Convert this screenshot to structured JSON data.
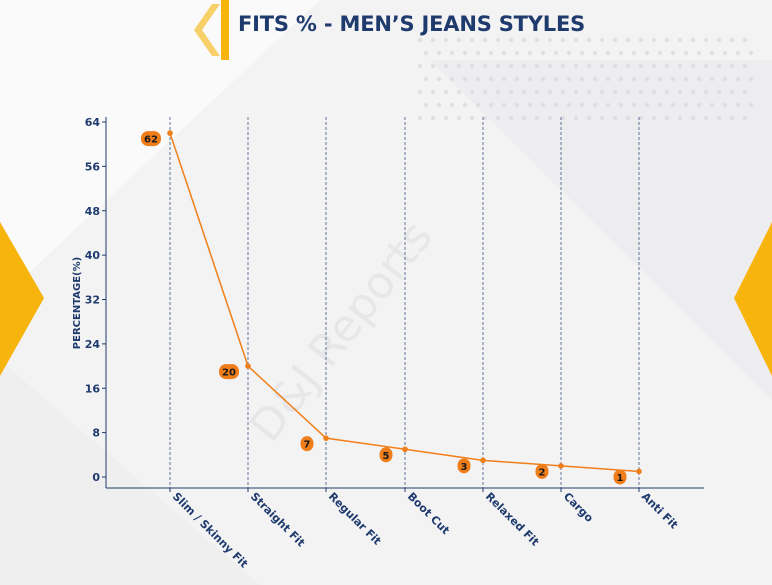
{
  "title": "FITS % - MEN’S JEANS STYLES",
  "watermark": "D&J Reports",
  "colors": {
    "accent": "#f6b40c",
    "line": "#f07f1a",
    "label_bg": "#ef7d1a",
    "axis_text": "#1f3b6e",
    "grid": "#1f3b6e"
  },
  "chart_data": {
    "type": "line",
    "title": "FITS % - MEN’S JEANS STYLES",
    "xlabel": "",
    "ylabel": "PERCENTAGE(%)",
    "categories": [
      "Slim / Skinny Fit",
      "Straight Fit",
      "Regular Fit",
      "Boot Cut",
      "Relaxed Fit",
      "Cargo",
      "Anti Fit"
    ],
    "values": [
      62,
      20,
      7,
      5,
      3,
      2,
      1
    ],
    "ylim": [
      0,
      64
    ],
    "yticks": [
      0,
      8,
      16,
      24,
      32,
      40,
      48,
      56,
      64
    ],
    "grid": "vertical dashed at categories",
    "legend": "none"
  }
}
